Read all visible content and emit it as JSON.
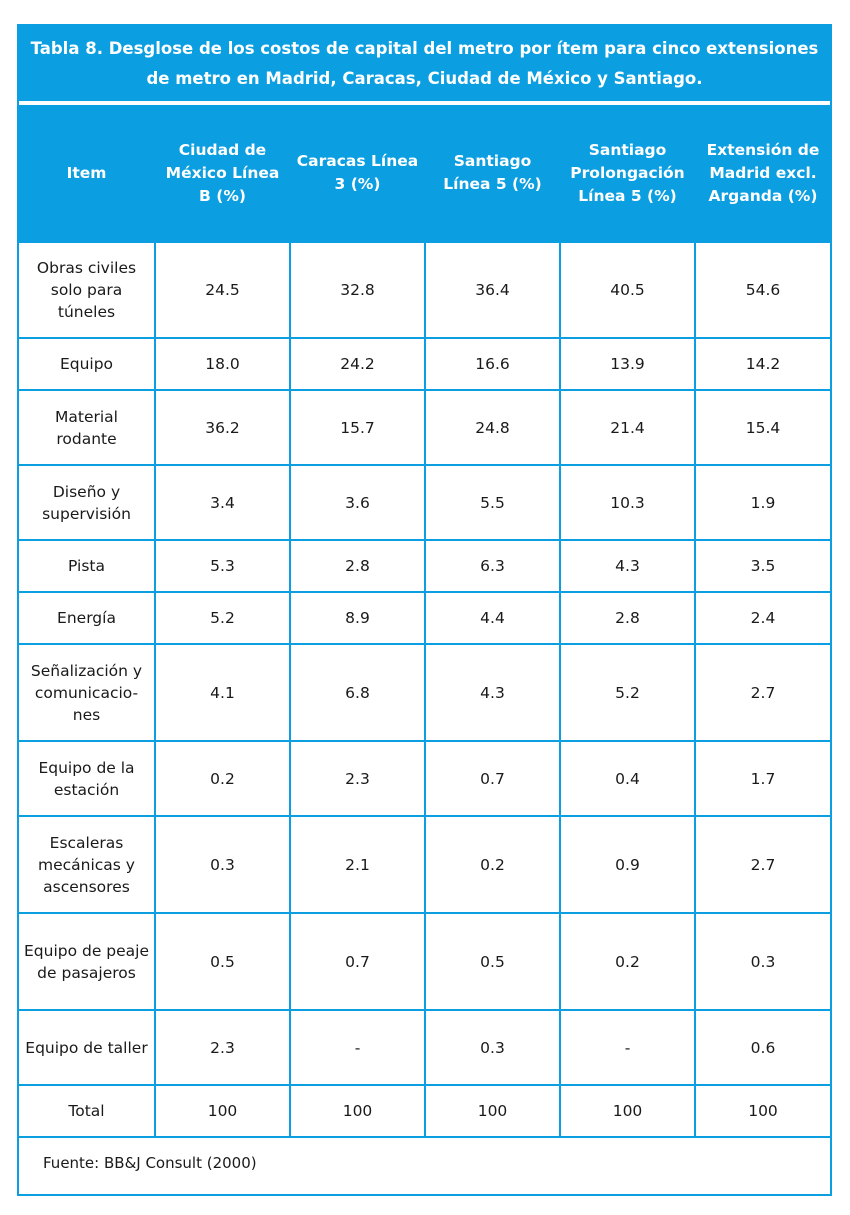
{
  "table": {
    "title_lines": [
      "Tabla 8. Desglose de los costos de capital del metro por ítem para cinco extensiones",
      "de metro en Madrid, Caracas, Ciudad de México y Santiago."
    ],
    "headers": [
      "Item",
      "Ciudad de México Línea B (%)",
      "Caracas Línea 3 (%)",
      "Santiago Línea 5 (%)",
      "Santiago Prolongación Línea 5 (%)",
      "Extensión de Madrid excl. Arganda (%)"
    ],
    "rows": [
      {
        "item": "Obras civiles solo para túneles",
        "values": [
          "24.5",
          "32.8",
          "36.4",
          "40.5",
          "54.6"
        ]
      },
      {
        "item": "Equipo",
        "values": [
          "18.0",
          "24.2",
          "16.6",
          "13.9",
          "14.2"
        ]
      },
      {
        "item": "Material rodante",
        "values": [
          "36.2",
          "15.7",
          "24.8",
          "21.4",
          "15.4"
        ]
      },
      {
        "item": "Diseño y supervisión",
        "values": [
          "3.4",
          "3.6",
          "5.5",
          "10.3",
          "1.9"
        ]
      },
      {
        "item": "Pista",
        "values": [
          "5.3",
          "2.8",
          "6.3",
          "4.3",
          "3.5"
        ]
      },
      {
        "item": "Energía",
        "values": [
          "5.2",
          "8.9",
          "4.4",
          "2.8",
          "2.4"
        ]
      },
      {
        "item": "Señalización y comunicacio-nes",
        "values": [
          "4.1",
          "6.8",
          "4.3",
          "5.2",
          "2.7"
        ]
      },
      {
        "item": "Equipo de la estación",
        "values": [
          "0.2",
          "2.3",
          "0.7",
          "0.4",
          "1.7"
        ]
      },
      {
        "item": "Escaleras mecánicas y ascensores",
        "values": [
          "0.3",
          "2.1",
          "0.2",
          "0.9",
          "2.7"
        ]
      },
      {
        "item": "Equipo de peaje de pasajeros",
        "values": [
          "0.5",
          "0.7",
          "0.5",
          "0.2",
          "0.3"
        ]
      },
      {
        "item": "Equipo de taller",
        "values": [
          "2.3",
          "-",
          "0.3",
          "-",
          "0.6"
        ]
      },
      {
        "item": "Total",
        "values": [
          "100",
          "100",
          "100",
          "100",
          "100"
        ]
      }
    ],
    "source": "Fuente: BB&J Consult (2000)"
  }
}
